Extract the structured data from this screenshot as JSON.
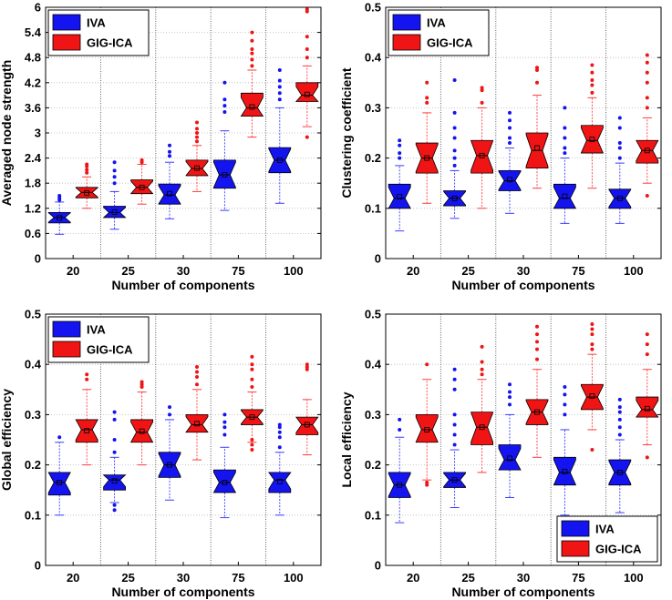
{
  "colors": {
    "iva": "#1414f0",
    "gig": "#f01414",
    "iva_whisker": "#3a3aff",
    "gig_whisker": "#ff3a3a"
  },
  "legend_labels": [
    "IVA",
    "GIG-ICA"
  ],
  "chart_data": [
    {
      "type": "box",
      "name": "panel-node-strength",
      "categories": [
        "20",
        "25",
        "30",
        "75",
        "100"
      ],
      "xlabel": "Number of components",
      "ylabel": "Averaged node strength",
      "ylim": [
        0,
        6
      ],
      "yticks": [
        0,
        0.6,
        1.2,
        1.8,
        2.4,
        3,
        3.6,
        4.2,
        4.8,
        5.4,
        6
      ],
      "ytick_labels": [
        "0",
        "0.6",
        "1.2",
        "1.8",
        "2.4",
        "3",
        "3.6",
        "4.2",
        "4.8",
        "5.4",
        "6"
      ],
      "grid": true,
      "legend_position": "top-left",
      "series": [
        {
          "name": "IVA",
          "boxes": [
            {
              "wlo": 0.58,
              "q1": 0.85,
              "med": 0.98,
              "q3": 1.1,
              "whi": 1.35,
              "mean": 0.97,
              "out": [
                1.4,
                1.45,
                1.5
              ]
            },
            {
              "wlo": 0.7,
              "q1": 0.98,
              "med": 1.1,
              "q3": 1.25,
              "whi": 1.6,
              "mean": 1.11,
              "out": [
                1.8,
                1.95,
                2.1,
                2.3
              ]
            },
            {
              "wlo": 0.95,
              "q1": 1.3,
              "med": 1.52,
              "q3": 1.78,
              "whi": 2.3,
              "mean": 1.55,
              "out": [
                2.45,
                2.55,
                2.7
              ]
            },
            {
              "wlo": 1.15,
              "q1": 1.68,
              "med": 2.0,
              "q3": 2.35,
              "whi": 3.05,
              "mean": 2.0,
              "out": [
                3.5,
                3.65,
                3.8,
                4.2
              ]
            },
            {
              "wlo": 1.32,
              "q1": 2.05,
              "med": 2.35,
              "q3": 2.65,
              "whi": 3.6,
              "mean": 2.35,
              "out": [
                3.8,
                3.95,
                4.1,
                4.25,
                4.5
              ]
            }
          ]
        },
        {
          "name": "GIG-ICA",
          "boxes": [
            {
              "wlo": 1.2,
              "q1": 1.45,
              "med": 1.58,
              "q3": 1.7,
              "whi": 1.95,
              "mean": 1.57,
              "out": [
                2.05,
                2.12,
                2.2,
                2.25
              ]
            },
            {
              "wlo": 1.3,
              "q1": 1.55,
              "med": 1.7,
              "q3": 1.88,
              "whi": 2.25,
              "mean": 1.7,
              "out": [
                2.3,
                2.35
              ]
            },
            {
              "wlo": 1.6,
              "q1": 1.98,
              "med": 2.15,
              "q3": 2.35,
              "whi": 2.7,
              "mean": 2.16,
              "out": [
                2.8,
                2.9,
                3.0,
                3.1,
                3.25
              ]
            },
            {
              "wlo": 2.9,
              "q1": 3.4,
              "med": 3.6,
              "q3": 3.95,
              "whi": 4.5,
              "mean": 3.62,
              "out": [
                4.6,
                4.75,
                4.9,
                5.0,
                5.2,
                5.4
              ]
            },
            {
              "wlo": 3.15,
              "q1": 3.75,
              "med": 3.9,
              "q3": 4.2,
              "whi": 4.6,
              "mean": 3.92,
              "out": [
                2.9,
                4.8,
                5.0,
                5.3,
                5.9,
                5.95
              ]
            }
          ]
        }
      ]
    },
    {
      "type": "box",
      "name": "panel-clustering",
      "categories": [
        "20",
        "25",
        "30",
        "75",
        "100"
      ],
      "xlabel": "Number of components",
      "ylabel": "Clustering coefficient",
      "ylim": [
        0,
        0.5
      ],
      "yticks": [
        0,
        0.1,
        0.2,
        0.3,
        0.4,
        0.5
      ],
      "ytick_labels": [
        "0",
        "0.1",
        "0.2",
        "0.3",
        "0.4",
        "0.5"
      ],
      "grid": true,
      "legend_position": "top-left",
      "series": [
        {
          "name": "IVA",
          "boxes": [
            {
              "wlo": 0.055,
              "q1": 0.1,
              "med": 0.12,
              "q3": 0.148,
              "whi": 0.185,
              "mean": 0.123,
              "out": [
                0.2,
                0.21,
                0.225,
                0.235
              ]
            },
            {
              "wlo": 0.08,
              "q1": 0.105,
              "med": 0.12,
              "q3": 0.135,
              "whi": 0.175,
              "mean": 0.12,
              "out": [
                0.185,
                0.2,
                0.215,
                0.24,
                0.26,
                0.29,
                0.355
              ]
            },
            {
              "wlo": 0.09,
              "q1": 0.135,
              "med": 0.155,
              "q3": 0.175,
              "whi": 0.22,
              "mean": 0.157,
              "out": [
                0.23,
                0.24,
                0.26,
                0.275,
                0.29
              ]
            },
            {
              "wlo": 0.07,
              "q1": 0.1,
              "med": 0.12,
              "q3": 0.148,
              "whi": 0.2,
              "mean": 0.124,
              "out": [
                0.21,
                0.22,
                0.24,
                0.26,
                0.3
              ]
            },
            {
              "wlo": 0.07,
              "q1": 0.1,
              "med": 0.12,
              "q3": 0.138,
              "whi": 0.19,
              "mean": 0.12,
              "out": [
                0.2,
                0.22,
                0.23,
                0.26,
                0.28
              ]
            }
          ]
        },
        {
          "name": "GIG-ICA",
          "boxes": [
            {
              "wlo": 0.11,
              "q1": 0.17,
              "med": 0.2,
              "q3": 0.23,
              "whi": 0.29,
              "mean": 0.2,
              "out": [
                0.31,
                0.32,
                0.35
              ]
            },
            {
              "wlo": 0.1,
              "q1": 0.17,
              "med": 0.205,
              "q3": 0.235,
              "whi": 0.3,
              "mean": 0.205,
              "out": [
                0.31,
                0.335,
                0.34
              ]
            },
            {
              "wlo": 0.14,
              "q1": 0.18,
              "med": 0.215,
              "q3": 0.25,
              "whi": 0.325,
              "mean": 0.22,
              "out": [
                0.35,
                0.375,
                0.38
              ]
            },
            {
              "wlo": 0.14,
              "q1": 0.21,
              "med": 0.235,
              "q3": 0.265,
              "whi": 0.32,
              "mean": 0.237,
              "out": [
                0.33,
                0.345,
                0.355,
                0.37,
                0.385
              ]
            },
            {
              "wlo": 0.15,
              "q1": 0.19,
              "med": 0.215,
              "q3": 0.235,
              "whi": 0.28,
              "mean": 0.215,
              "out": [
                0.125,
                0.3,
                0.32,
                0.35,
                0.37,
                0.39,
                0.405
              ]
            }
          ]
        }
      ]
    },
    {
      "type": "box",
      "name": "panel-global-efficiency",
      "categories": [
        "20",
        "25",
        "30",
        "75",
        "100"
      ],
      "xlabel": "Number of components",
      "ylabel": "Global efficiency",
      "ylim": [
        0,
        0.5
      ],
      "yticks": [
        0,
        0.1,
        0.2,
        0.3,
        0.4,
        0.5
      ],
      "ytick_labels": [
        "0",
        "0.1",
        "0.2",
        "0.3",
        "0.4",
        "0.5"
      ],
      "grid": true,
      "legend_position": "top-left",
      "series": [
        {
          "name": "IVA",
          "boxes": [
            {
              "wlo": 0.1,
              "q1": 0.14,
              "med": 0.165,
              "q3": 0.185,
              "whi": 0.245,
              "mean": 0.165,
              "out": [
                0.255
              ]
            },
            {
              "wlo": 0.125,
              "q1": 0.15,
              "med": 0.17,
              "q3": 0.18,
              "whi": 0.215,
              "mean": 0.168,
              "out": [
                0.11,
                0.12,
                0.225,
                0.25,
                0.29,
                0.305
              ]
            },
            {
              "wlo": 0.13,
              "q1": 0.175,
              "med": 0.2,
              "q3": 0.225,
              "whi": 0.29,
              "mean": 0.2,
              "out": [
                0.3,
                0.315
              ]
            },
            {
              "wlo": 0.095,
              "q1": 0.145,
              "med": 0.165,
              "q3": 0.19,
              "whi": 0.235,
              "mean": 0.165,
              "out": [
                0.26,
                0.275,
                0.285,
                0.3
              ]
            },
            {
              "wlo": 0.1,
              "q1": 0.145,
              "med": 0.17,
              "q3": 0.185,
              "whi": 0.225,
              "mean": 0.167,
              "out": [
                0.235,
                0.255,
                0.265,
                0.275,
                0.28
              ]
            }
          ]
        },
        {
          "name": "GIG-ICA",
          "boxes": [
            {
              "wlo": 0.2,
              "q1": 0.245,
              "med": 0.27,
              "q3": 0.29,
              "whi": 0.35,
              "mean": 0.268,
              "out": [
                0.37,
                0.38
              ]
            },
            {
              "wlo": 0.2,
              "q1": 0.245,
              "med": 0.265,
              "q3": 0.29,
              "whi": 0.345,
              "mean": 0.267,
              "out": [
                0.355,
                0.36,
                0.365
              ]
            },
            {
              "wlo": 0.21,
              "q1": 0.265,
              "med": 0.28,
              "q3": 0.3,
              "whi": 0.35,
              "mean": 0.282,
              "out": [
                0.36,
                0.375,
                0.385,
                0.395
              ]
            },
            {
              "wlo": 0.245,
              "q1": 0.28,
              "med": 0.295,
              "q3": 0.31,
              "whi": 0.345,
              "mean": 0.295,
              "out": [
                0.23,
                0.24,
                0.25,
                0.355,
                0.37,
                0.39,
                0.4,
                0.415
              ]
            },
            {
              "wlo": 0.22,
              "q1": 0.26,
              "med": 0.28,
              "q3": 0.295,
              "whi": 0.33,
              "mean": 0.28,
              "out": [
                0.39,
                0.395,
                0.4
              ]
            }
          ]
        }
      ]
    },
    {
      "type": "box",
      "name": "panel-local-efficiency",
      "categories": [
        "20",
        "25",
        "30",
        "75",
        "100"
      ],
      "xlabel": "Number of components",
      "ylabel": "Local efficiency",
      "ylim": [
        0,
        0.5
      ],
      "yticks": [
        0,
        0.1,
        0.2,
        0.3,
        0.4,
        0.5
      ],
      "ytick_labels": [
        "0",
        "0.1",
        "0.2",
        "0.3",
        "0.4",
        "0.5"
      ],
      "grid": true,
      "legend_position": "bottom-right",
      "series": [
        {
          "name": "IVA",
          "boxes": [
            {
              "wlo": 0.085,
              "q1": 0.135,
              "med": 0.16,
              "q3": 0.185,
              "whi": 0.255,
              "mean": 0.16,
              "out": [
                0.27,
                0.29
              ]
            },
            {
              "wlo": 0.115,
              "q1": 0.155,
              "med": 0.17,
              "q3": 0.185,
              "whi": 0.23,
              "mean": 0.17,
              "out": [
                0.24,
                0.26,
                0.28,
                0.3,
                0.35,
                0.37,
                0.39
              ]
            },
            {
              "wlo": 0.135,
              "q1": 0.19,
              "med": 0.21,
              "q3": 0.24,
              "whi": 0.3,
              "mean": 0.213,
              "out": [
                0.32,
                0.335,
                0.345,
                0.36
              ]
            },
            {
              "wlo": 0.1,
              "q1": 0.16,
              "med": 0.185,
              "q3": 0.215,
              "whi": 0.27,
              "mean": 0.187,
              "out": [
                0.3,
                0.32,
                0.34,
                0.355
              ]
            },
            {
              "wlo": 0.105,
              "q1": 0.16,
              "med": 0.185,
              "q3": 0.21,
              "whi": 0.25,
              "mean": 0.185,
              "out": [
                0.26,
                0.275,
                0.29,
                0.305,
                0.315,
                0.33
              ]
            }
          ]
        },
        {
          "name": "GIG-ICA",
          "boxes": [
            {
              "wlo": 0.17,
              "q1": 0.245,
              "med": 0.27,
              "q3": 0.3,
              "whi": 0.37,
              "mean": 0.27,
              "out": [
                0.16,
                0.165,
                0.4
              ]
            },
            {
              "wlo": 0.185,
              "q1": 0.24,
              "med": 0.275,
              "q3": 0.305,
              "whi": 0.37,
              "mean": 0.275,
              "out": [
                0.38,
                0.39,
                0.405,
                0.435
              ]
            },
            {
              "wlo": 0.215,
              "q1": 0.28,
              "med": 0.305,
              "q3": 0.33,
              "whi": 0.39,
              "mean": 0.305,
              "out": [
                0.41,
                0.43,
                0.445,
                0.46,
                0.475
              ]
            },
            {
              "wlo": 0.27,
              "q1": 0.31,
              "med": 0.335,
              "q3": 0.36,
              "whi": 0.42,
              "mean": 0.337,
              "out": [
                0.23,
                0.43,
                0.44,
                0.46,
                0.47,
                0.48
              ]
            },
            {
              "wlo": 0.24,
              "q1": 0.295,
              "med": 0.31,
              "q3": 0.335,
              "whi": 0.39,
              "mean": 0.312,
              "out": [
                0.215,
                0.42,
                0.44,
                0.46
              ]
            }
          ]
        }
      ]
    }
  ]
}
